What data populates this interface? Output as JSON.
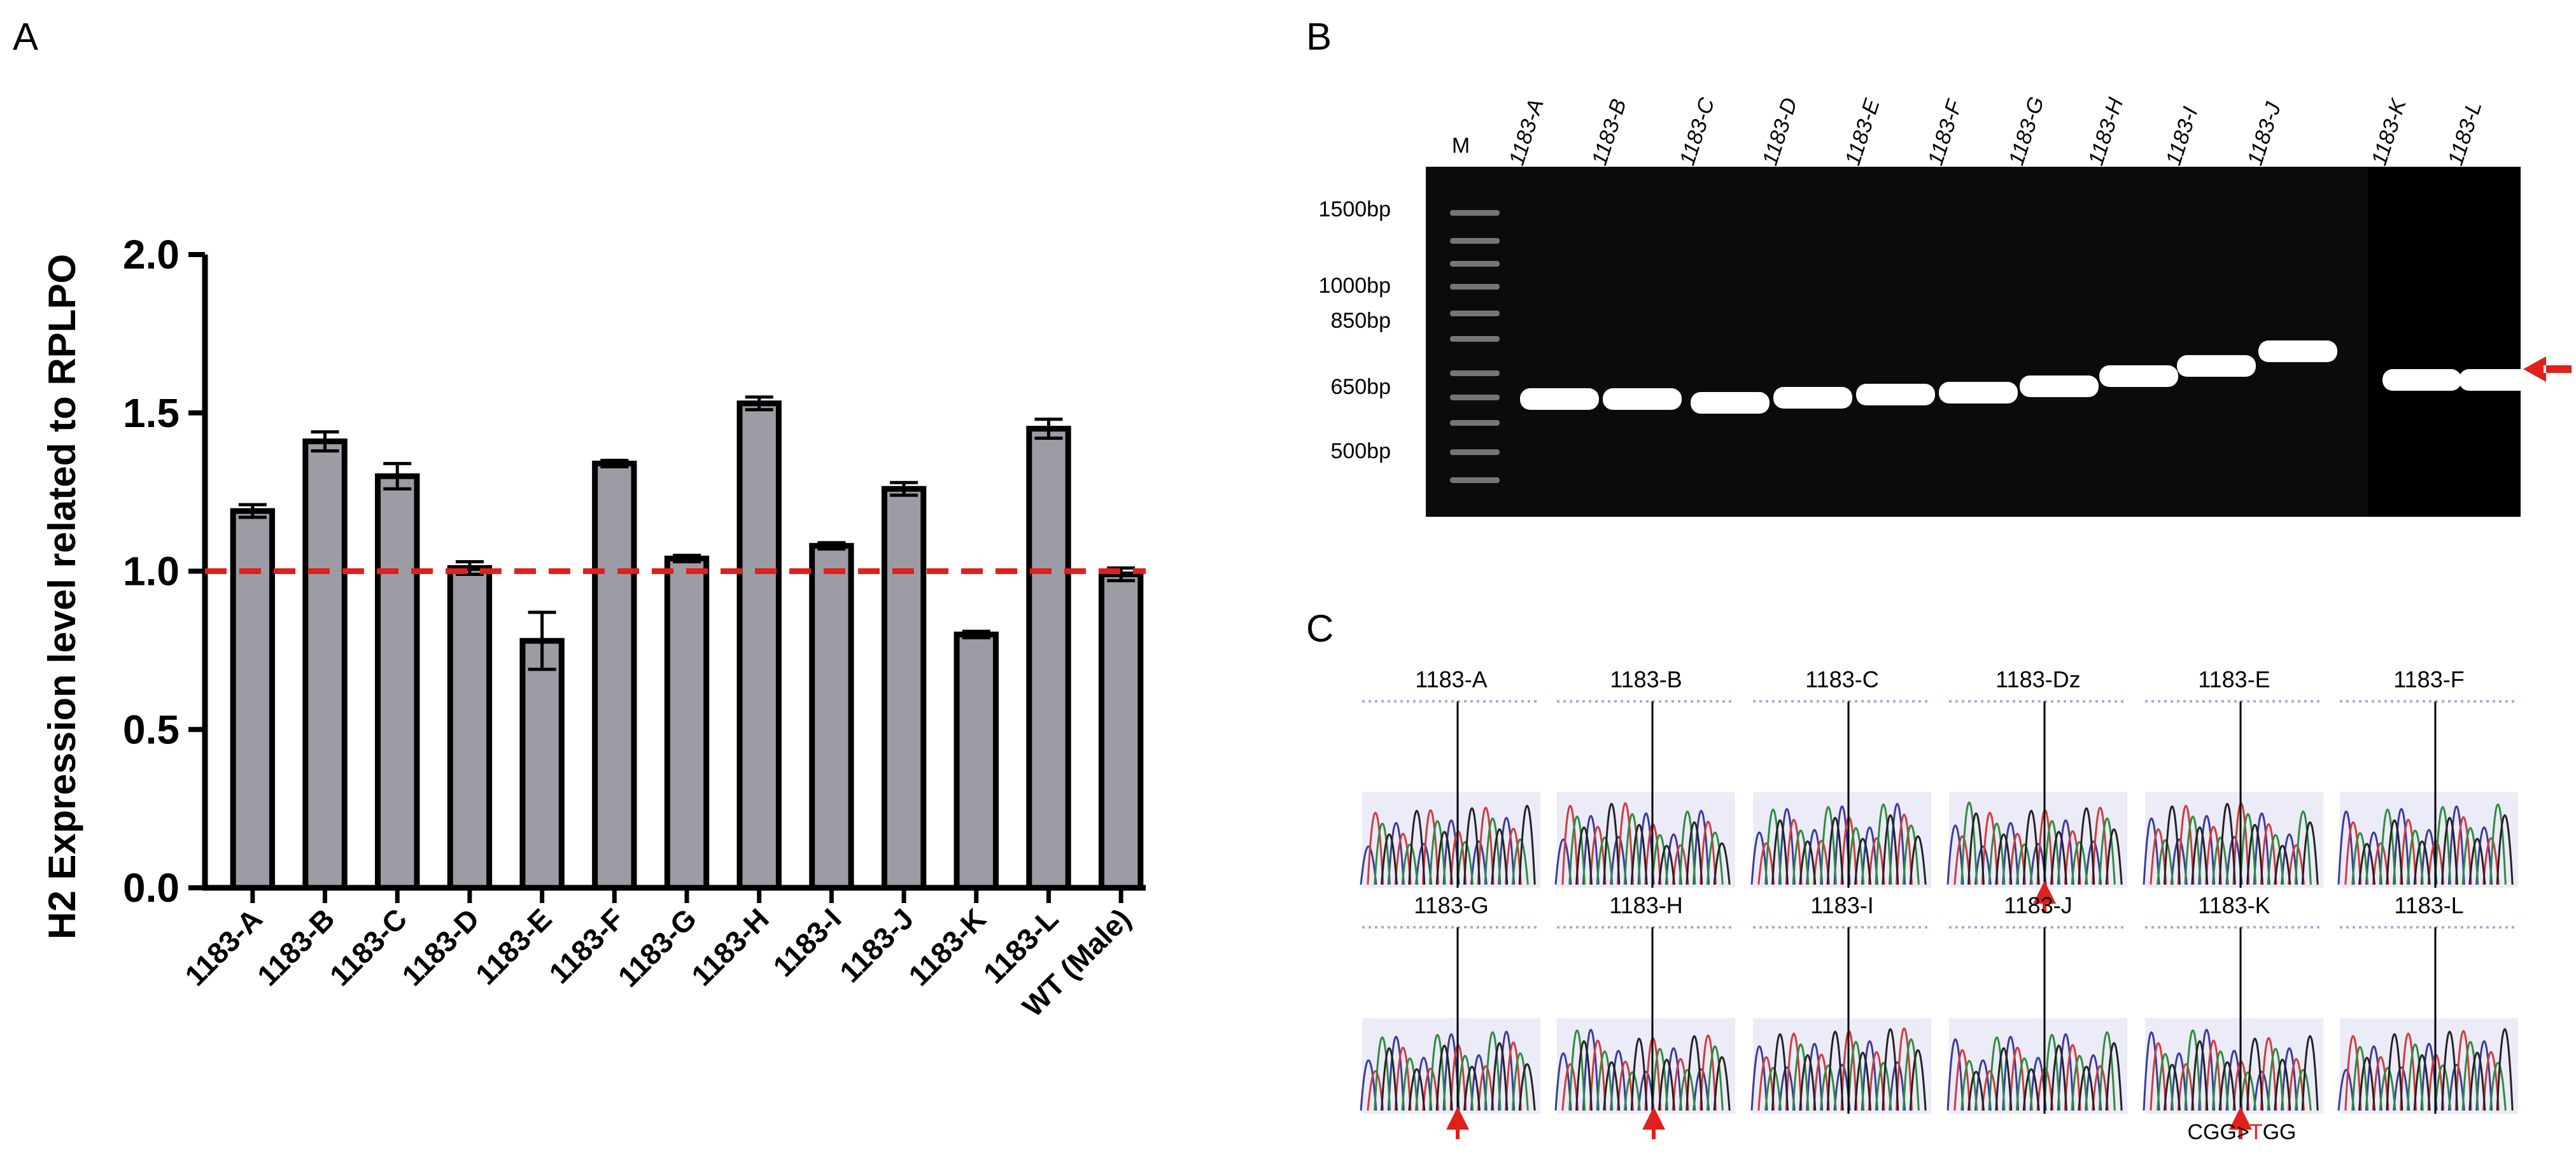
{
  "panels": {
    "a": "A",
    "b": "B",
    "c": "C"
  },
  "colors": {
    "bar_fill": "#9c9ca4",
    "bar_stroke": "#000000",
    "reference_line": "#e0201b",
    "gel_background": "#0b0b0b",
    "band": "#ffffff",
    "arrow": "#e0201b",
    "trace_bg": "#ecebf8",
    "trace_blue": "#3a3aa0",
    "trace_red": "#d23a3a",
    "trace_green": "#2e8b3e",
    "trace_black": "#222222"
  },
  "chart_data": {
    "type": "bar",
    "title": "",
    "xlabel": "",
    "ylabel": "H2 Expression level related to RPLPO",
    "categories": [
      "1183-A",
      "1183-B",
      "1183-C",
      "1183-D",
      "1183-E",
      "1183-F",
      "1183-G",
      "1183-H",
      "1183-I",
      "1183-J",
      "1183-K",
      "1183-L",
      "WT (Male)"
    ],
    "values": [
      1.19,
      1.41,
      1.3,
      1.01,
      0.78,
      1.34,
      1.04,
      1.53,
      1.08,
      1.26,
      0.8,
      1.45,
      0.99
    ],
    "errors": [
      0.02,
      0.03,
      0.04,
      0.02,
      0.09,
      0.01,
      0.01,
      0.02,
      0.01,
      0.02,
      0.01,
      0.03,
      0.02
    ],
    "ylim": [
      0,
      2.0
    ],
    "yticks": [
      0.0,
      0.5,
      1.0,
      1.5,
      2.0
    ],
    "ytick_labels": [
      "0.0",
      "0.5",
      "1.0",
      "1.5",
      "2.0"
    ],
    "reference_line": 1.0,
    "grid": false
  },
  "gel": {
    "marker_label": "M",
    "lanes": [
      "1183-A",
      "1183-B",
      "1183-C",
      "1183-D",
      "1183-E",
      "1183-F",
      "1183-G",
      "1183-H",
      "1183-I",
      "1183-J",
      "1183-K",
      "1183-L"
    ],
    "size_labels": [
      "1500bp",
      "1000bp",
      "850bp",
      "650bp",
      "500bp"
    ],
    "ladder_bp": [
      1500,
      1000,
      850,
      650,
      500
    ]
  },
  "sequencing": {
    "row1": [
      "1183-A",
      "1183-B",
      "1183-C",
      "1183-Dz",
      "1183-E",
      "1183-F"
    ],
    "row2": [
      "1183-G",
      "1183-H",
      "1183-I",
      "1183-J",
      "1183-K",
      "1183-L"
    ],
    "mutation_note": {
      "prefix": "CGG>",
      "highlight": "T",
      "suffix": "GG"
    }
  }
}
